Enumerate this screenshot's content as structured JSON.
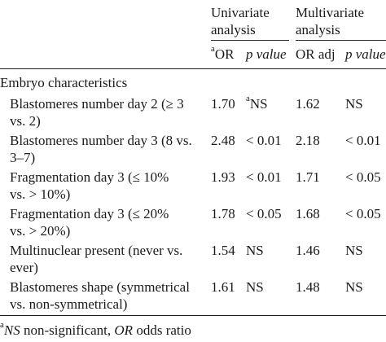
{
  "table": {
    "header": {
      "univariate": {
        "line1": "Univariate",
        "line2": "analysis"
      },
      "multivariate": {
        "line1": "Multivariate",
        "line2": "analysis"
      },
      "sub": {
        "or_sup": "a",
        "or": "OR",
        "p_value": "p value",
        "or_adj": "OR adj",
        "p_value_2": "p value"
      }
    },
    "section_label": "Embryo characteristics",
    "rows": [
      {
        "label_lines": [
          "Blastomeres number day 2 (≥ 3",
          "vs. 2)"
        ],
        "or": "1.70",
        "p_sup": "a",
        "p": "NS",
        "or_adj": "1.62",
        "p_adj": "NS"
      },
      {
        "label_lines": [
          "Blastomeres number day 3 (8 vs.",
          "3–7)"
        ],
        "or": "2.48",
        "p_sup": "",
        "p": "< 0.01",
        "or_adj": "2.18",
        "p_adj": "< 0.01"
      },
      {
        "label_lines": [
          "Fragmentation day 3 (≤ 10%",
          "vs. > 10%)"
        ],
        "or": "1.93",
        "p_sup": "",
        "p": "< 0.01",
        "or_adj": "1.71",
        "p_adj": "< 0.05"
      },
      {
        "label_lines": [
          "Fragmentation day 3 (≤ 20%",
          "vs. > 20%)"
        ],
        "or": "1.78",
        "p_sup": "",
        "p": "< 0.05",
        "or_adj": "1.68",
        "p_adj": "< 0.05"
      },
      {
        "label_lines": [
          "Multinuclear present (never vs.",
          "ever)"
        ],
        "or": "1.54",
        "p_sup": "",
        "p": "NS",
        "or_adj": "1.46",
        "p_adj": "NS"
      },
      {
        "label_lines": [
          "Blastomeres shape (symmetrical",
          "vs. non-symmetrical)"
        ],
        "or": "1.61",
        "p_sup": "",
        "p": "NS",
        "or_adj": "1.48",
        "p_adj": "NS"
      }
    ],
    "footnote": {
      "sup": "a",
      "ns_abbr": "NS",
      "ns_text": " non-significant, ",
      "or_abbr": "OR",
      "or_text": " odds ratio"
    }
  }
}
